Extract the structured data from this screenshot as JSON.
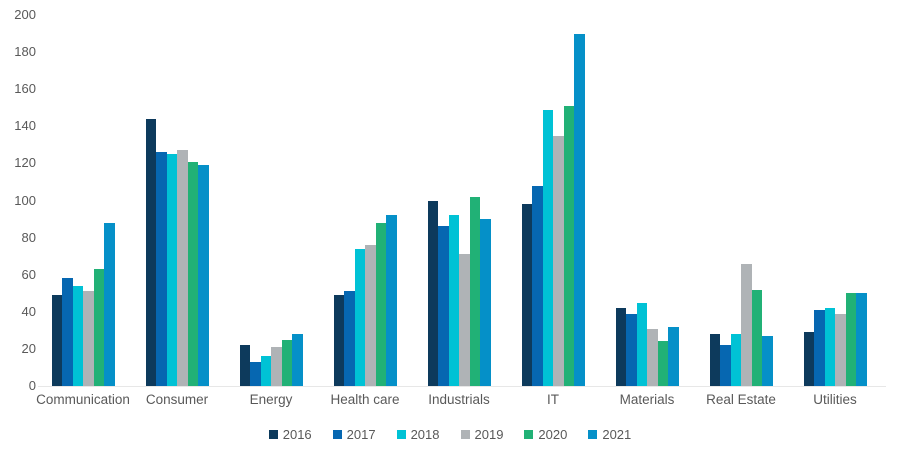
{
  "chart_data": {
    "type": "bar",
    "title": "",
    "xlabel": "",
    "ylabel": "",
    "ylim": [
      0,
      200
    ],
    "yticks": [
      0,
      20,
      40,
      60,
      80,
      100,
      120,
      140,
      160,
      180,
      200
    ],
    "grid": false,
    "legend_position": "bottom",
    "categories": [
      "Communication",
      "Consumer",
      "Energy",
      "Health care",
      "Industrials",
      "IT",
      "Materials",
      "Real Estate",
      "Utilities"
    ],
    "series": [
      {
        "name": "2016",
        "color": "#0d3a5c",
        "values": [
          49,
          144,
          22,
          49,
          100,
          98,
          42,
          28,
          29
        ]
      },
      {
        "name": "2017",
        "color": "#0667b1",
        "values": [
          58,
          126,
          13,
          51,
          86,
          108,
          39,
          22,
          41
        ]
      },
      {
        "name": "2018",
        "color": "#00c2d5",
        "values": [
          54,
          125,
          16,
          74,
          92,
          149,
          45,
          28,
          42
        ]
      },
      {
        "name": "2019",
        "color": "#afb3b6",
        "values": [
          51,
          127,
          21,
          76,
          71,
          135,
          31,
          66,
          39
        ]
      },
      {
        "name": "2020",
        "color": "#21b176",
        "values": [
          63,
          121,
          25,
          88,
          102,
          151,
          24,
          52,
          50
        ]
      },
      {
        "name": "2021",
        "color": "#0590c8",
        "values": [
          88,
          119,
          28,
          92,
          90,
          190,
          32,
          27,
          50
        ]
      }
    ]
  },
  "style": {
    "text_color": "#595959",
    "baseline_color": "#e7e7e7",
    "background": "#ffffff"
  }
}
